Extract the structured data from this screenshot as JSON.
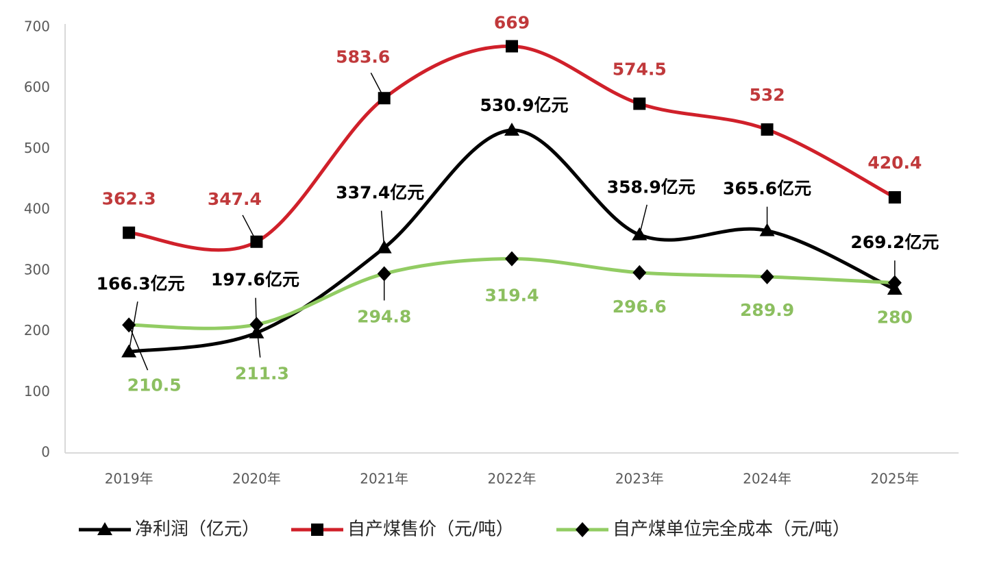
{
  "chart_data": {
    "type": "line",
    "categories": [
      "2019年",
      "2020年",
      "2021年",
      "2022年",
      "2023年",
      "2024年",
      "2025年"
    ],
    "series": [
      {
        "name": "净利润（亿元）",
        "color": "#000000",
        "marker": "triangle",
        "values": [
          166.3,
          197.6,
          337.4,
          530.9,
          358.9,
          365.6,
          269.2
        ],
        "value_labels": [
          "166.3亿元",
          "197.6亿元",
          "337.4亿元",
          "530.9亿元",
          "358.9亿元",
          "365.6亿元",
          "269.2亿元"
        ],
        "label_color": "#000000"
      },
      {
        "name": "自产煤售价（元/吨）",
        "color": "#d0202a",
        "marker": "square",
        "values": [
          362.3,
          347.4,
          583.6,
          669,
          574.5,
          532,
          420.4
        ],
        "label_color": "#c0393b"
      },
      {
        "name": "自产煤单位完全成本（元/吨）",
        "color": "#92cc63",
        "marker": "diamond",
        "values": [
          210.5,
          211.3,
          294.8,
          319.4,
          296.6,
          289.9,
          280
        ],
        "label_color": "#8cbf60"
      }
    ],
    "ylim": [
      0,
      700
    ],
    "yticks": [
      0,
      100,
      200,
      300,
      400,
      500,
      600,
      700
    ],
    "grid": false,
    "legend": "bottom"
  }
}
